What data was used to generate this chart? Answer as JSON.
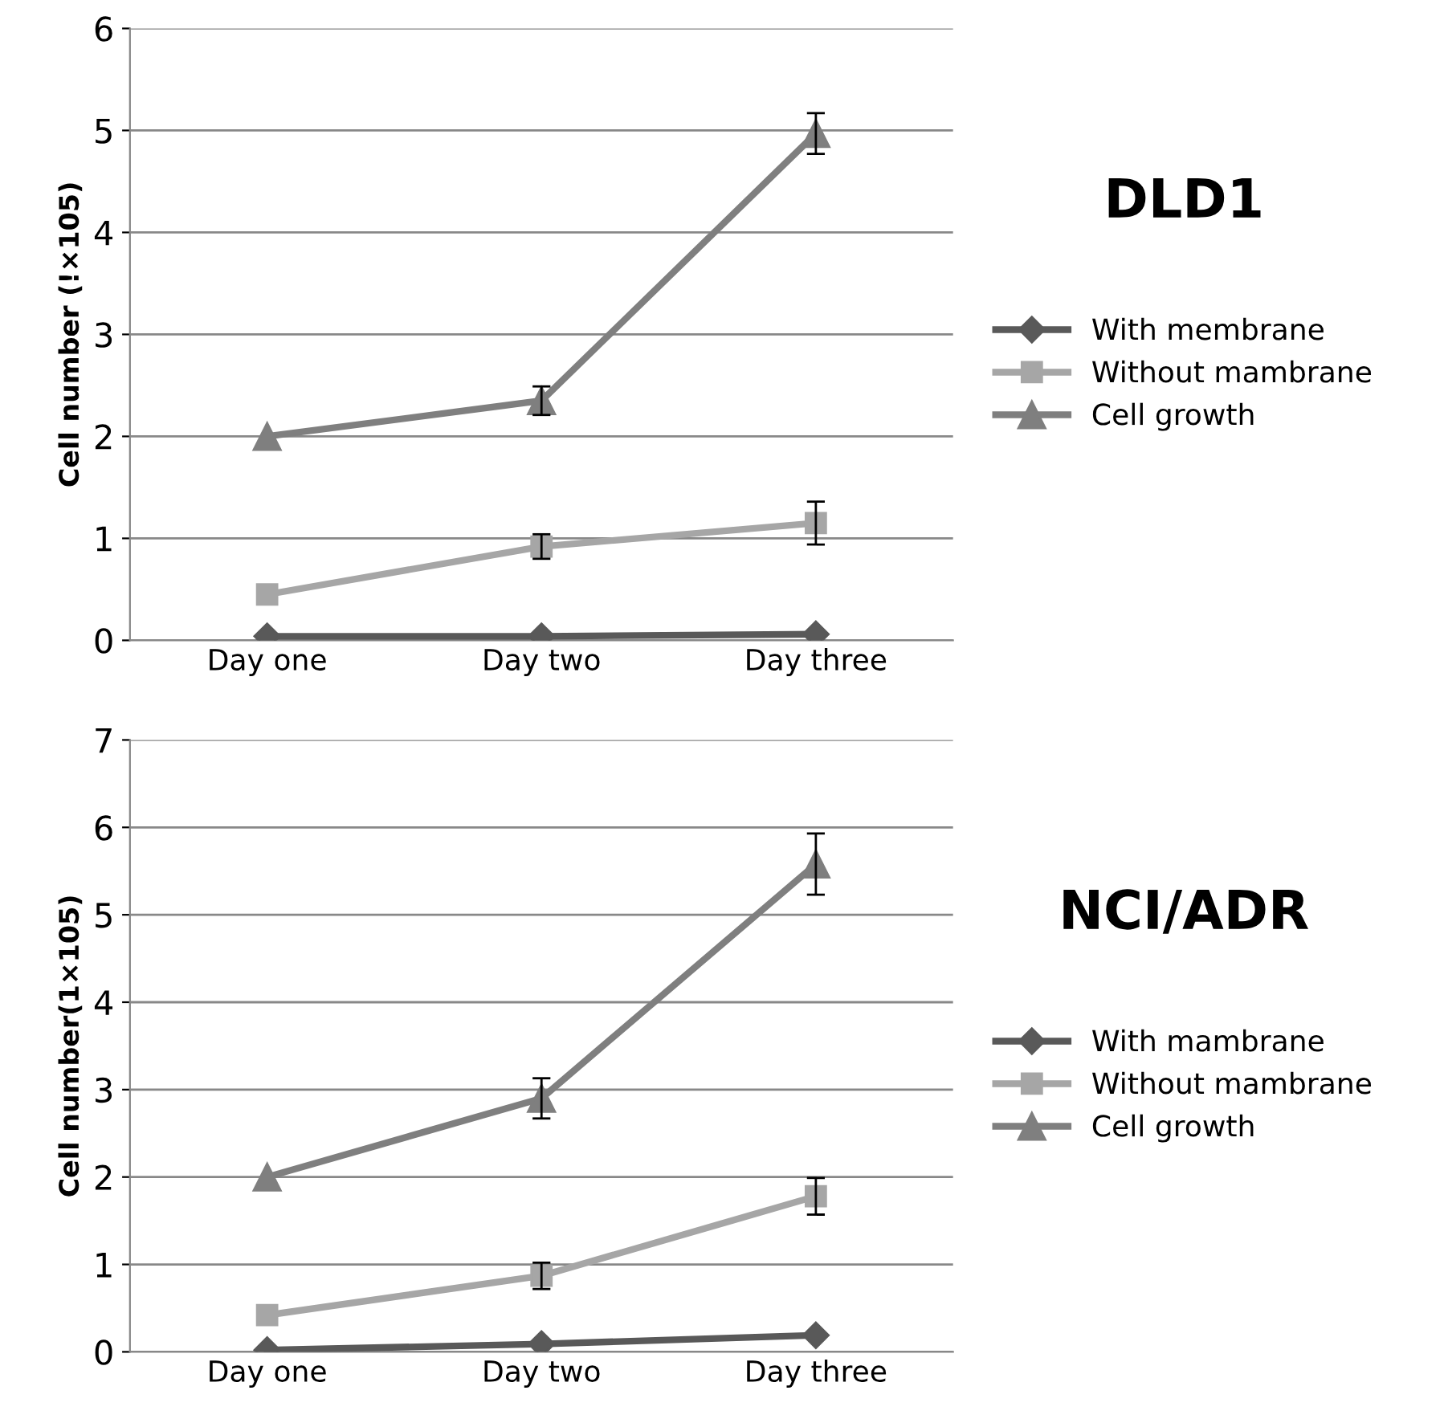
{
  "chart_data": [
    {
      "type": "line",
      "legend_title": "DLD1",
      "ylabel": "Cell number (!×105)",
      "categories": [
        "Day one",
        "Day two",
        "Day three"
      ],
      "ylim": [
        0,
        6
      ],
      "yticks": [
        0,
        1,
        2,
        3,
        4,
        5,
        6
      ],
      "grid": "y",
      "legend": "right",
      "series": [
        {
          "name": "With membrane",
          "color": "#595959",
          "marker": "diamond",
          "values": [
            0.04,
            0.04,
            0.06
          ]
        },
        {
          "name": "Without mambrane",
          "color": "#a6a6a6",
          "marker": "square",
          "values": [
            0.45,
            0.92,
            1.15
          ],
          "errors": [
            null,
            0.12,
            0.21
          ]
        },
        {
          "name": "Cell growth",
          "color": "#7f7f7f",
          "marker": "triangle",
          "values": [
            2.0,
            2.35,
            4.97
          ],
          "errors": [
            null,
            0.14,
            0.2
          ]
        }
      ]
    },
    {
      "type": "line",
      "legend_title": "NCI/ADR",
      "ylabel": "Cell number(1×105)",
      "categories": [
        "Day one",
        "Day two",
        "Day three"
      ],
      "ylim": [
        0,
        7
      ],
      "yticks": [
        0,
        1,
        2,
        3,
        4,
        5,
        6,
        7
      ],
      "grid": "y",
      "legend": "right",
      "series": [
        {
          "name": "With mambrane",
          "color": "#595959",
          "marker": "diamond",
          "values": [
            0.02,
            0.09,
            0.19
          ]
        },
        {
          "name": "Without mambrane",
          "color": "#a6a6a6",
          "marker": "square",
          "values": [
            0.42,
            0.87,
            1.78
          ],
          "errors": [
            null,
            0.15,
            0.21
          ]
        },
        {
          "name": "Cell growth",
          "color": "#7f7f7f",
          "marker": "triangle",
          "values": [
            2.0,
            2.9,
            5.58
          ],
          "errors": [
            null,
            0.23,
            0.35
          ]
        }
      ]
    }
  ]
}
